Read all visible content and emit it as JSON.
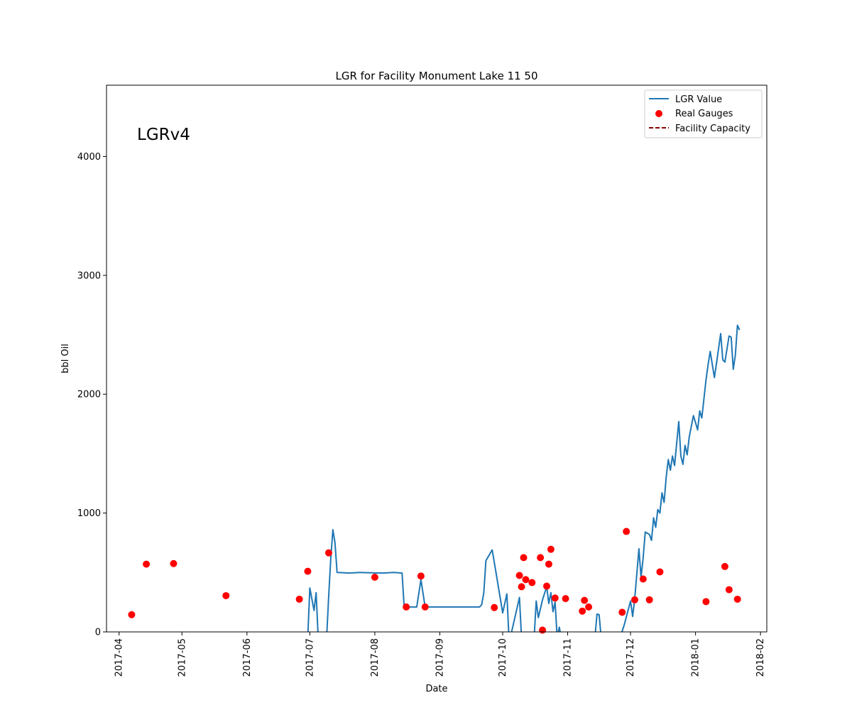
{
  "chart_data": {
    "type": "line",
    "title": "LGR for Facility Monument Lake 11 50",
    "xlabel": "Date",
    "ylabel": "bbl Oil",
    "annotation": "LGRv4",
    "xlim": [
      "2017-03-26",
      "2018-02-04"
    ],
    "ylim": [
      0,
      4600
    ],
    "x_ticks": [
      "2017-04",
      "2017-05",
      "2017-06",
      "2017-07",
      "2017-08",
      "2017-09",
      "2017-10",
      "2017-11",
      "2017-12",
      "2018-01",
      "2018-02"
    ],
    "x_tick_dates": [
      "2017-04-01",
      "2017-05-01",
      "2017-06-01",
      "2017-07-01",
      "2017-08-01",
      "2017-09-01",
      "2017-10-01",
      "2017-11-01",
      "2017-12-01",
      "2018-01-01",
      "2018-02-01"
    ],
    "y_ticks": [
      0,
      1000,
      2000,
      3000,
      4000
    ],
    "grid": false,
    "legend": {
      "position": "top-right",
      "entries": [
        "LGR Value",
        "Real Gauges",
        "Facility Capacity"
      ]
    },
    "colors": {
      "lgr_value": "#1f77b4",
      "real_gauges": "#ff0000",
      "facility_capacity": "#8b0000"
    },
    "series": [
      {
        "name": "LGR Value",
        "kind": "line",
        "points": [
          [
            "2017-06-30",
            -50
          ],
          [
            "2017-07-01",
            370
          ],
          [
            "2017-07-03",
            180
          ],
          [
            "2017-07-04",
            330
          ],
          [
            "2017-07-05",
            -50
          ],
          [
            "2017-07-09",
            -50
          ],
          [
            "2017-07-10",
            300
          ],
          [
            "2017-07-11",
            620
          ],
          [
            "2017-07-12",
            860
          ],
          [
            "2017-07-13",
            750
          ],
          [
            "2017-07-14",
            500
          ],
          [
            "2017-07-20",
            495
          ],
          [
            "2017-07-25",
            500
          ],
          [
            "2017-08-05",
            495
          ],
          [
            "2017-08-10",
            500
          ],
          [
            "2017-08-14",
            495
          ],
          [
            "2017-08-15",
            210
          ],
          [
            "2017-08-21",
            210
          ],
          [
            "2017-08-23",
            440
          ],
          [
            "2017-08-25",
            210
          ],
          [
            "2017-09-05",
            210
          ],
          [
            "2017-09-15",
            210
          ],
          [
            "2017-09-20",
            210
          ],
          [
            "2017-09-21",
            230
          ],
          [
            "2017-09-22",
            330
          ],
          [
            "2017-09-23",
            600
          ],
          [
            "2017-09-26",
            690
          ],
          [
            "2017-09-28",
            480
          ],
          [
            "2017-10-01",
            160
          ],
          [
            "2017-10-03",
            320
          ],
          [
            "2017-10-04",
            -50
          ],
          [
            "2017-10-05",
            -20
          ],
          [
            "2017-10-09",
            290
          ],
          [
            "2017-10-10",
            -50
          ],
          [
            "2017-10-16",
            -50
          ],
          [
            "2017-10-17",
            260
          ],
          [
            "2017-10-18",
            120
          ],
          [
            "2017-10-20",
            270
          ],
          [
            "2017-10-22",
            380
          ],
          [
            "2017-10-23",
            240
          ],
          [
            "2017-10-24",
            330
          ],
          [
            "2017-10-25",
            170
          ],
          [
            "2017-10-26",
            250
          ],
          [
            "2017-10-27",
            -50
          ],
          [
            "2017-10-28",
            40
          ],
          [
            "2017-10-29",
            -50
          ],
          [
            "2017-11-14",
            -50
          ],
          [
            "2017-11-15",
            150
          ],
          [
            "2017-11-16",
            145
          ],
          [
            "2017-11-17",
            -50
          ],
          [
            "2017-11-26",
            -50
          ],
          [
            "2017-11-28",
            60
          ],
          [
            "2017-12-01",
            260
          ],
          [
            "2017-12-02",
            130
          ],
          [
            "2017-12-03",
            280
          ],
          [
            "2017-12-05",
            700
          ],
          [
            "2017-12-06",
            460
          ],
          [
            "2017-12-07",
            620
          ],
          [
            "2017-12-08",
            840
          ],
          [
            "2017-12-10",
            820
          ],
          [
            "2017-12-11",
            770
          ],
          [
            "2017-12-12",
            960
          ],
          [
            "2017-12-13",
            880
          ],
          [
            "2017-12-14",
            1030
          ],
          [
            "2017-12-15",
            1000
          ],
          [
            "2017-12-16",
            1170
          ],
          [
            "2017-12-17",
            1090
          ],
          [
            "2017-12-18",
            1300
          ],
          [
            "2017-12-19",
            1450
          ],
          [
            "2017-12-20",
            1360
          ],
          [
            "2017-12-21",
            1480
          ],
          [
            "2017-12-22",
            1400
          ],
          [
            "2017-12-24",
            1770
          ],
          [
            "2017-12-25",
            1480
          ],
          [
            "2017-12-26",
            1410
          ],
          [
            "2017-12-27",
            1570
          ],
          [
            "2017-12-28",
            1490
          ],
          [
            "2017-12-29",
            1640
          ],
          [
            "2017-12-31",
            1820
          ],
          [
            "2018-01-01",
            1760
          ],
          [
            "2018-01-02",
            1700
          ],
          [
            "2018-01-03",
            1860
          ],
          [
            "2018-01-04",
            1800
          ],
          [
            "2018-01-05",
            1960
          ],
          [
            "2018-01-06",
            2120
          ],
          [
            "2018-01-07",
            2250
          ],
          [
            "2018-01-08",
            2360
          ],
          [
            "2018-01-09",
            2250
          ],
          [
            "2018-01-10",
            2140
          ],
          [
            "2018-01-11",
            2260
          ],
          [
            "2018-01-13",
            2510
          ],
          [
            "2018-01-14",
            2290
          ],
          [
            "2018-01-15",
            2270
          ],
          [
            "2018-01-16",
            2380
          ],
          [
            "2018-01-17",
            2490
          ],
          [
            "2018-01-18",
            2480
          ],
          [
            "2018-01-19",
            2210
          ],
          [
            "2018-01-20",
            2330
          ],
          [
            "2018-01-21",
            2580
          ],
          [
            "2018-01-22",
            2540
          ]
        ]
      },
      {
        "name": "Real Gauges",
        "kind": "scatter",
        "points": [
          [
            "2017-04-07",
            145
          ],
          [
            "2017-04-14",
            570
          ],
          [
            "2017-04-27",
            575
          ],
          [
            "2017-05-22",
            305
          ],
          [
            "2017-06-26",
            275
          ],
          [
            "2017-06-30",
            510
          ],
          [
            "2017-07-10",
            665
          ],
          [
            "2017-08-01",
            460
          ],
          [
            "2017-08-16",
            210
          ],
          [
            "2017-08-23",
            470
          ],
          [
            "2017-08-25",
            210
          ],
          [
            "2017-09-27",
            205
          ],
          [
            "2017-10-09",
            475
          ],
          [
            "2017-10-10",
            380
          ],
          [
            "2017-10-11",
            625
          ],
          [
            "2017-10-12",
            440
          ],
          [
            "2017-10-15",
            415
          ],
          [
            "2017-10-19",
            625
          ],
          [
            "2017-10-20",
            15
          ],
          [
            "2017-10-22",
            385
          ],
          [
            "2017-10-23",
            570
          ],
          [
            "2017-10-24",
            695
          ],
          [
            "2017-10-26",
            285
          ],
          [
            "2017-10-31",
            280
          ],
          [
            "2017-11-08",
            175
          ],
          [
            "2017-11-09",
            265
          ],
          [
            "2017-11-11",
            210
          ],
          [
            "2017-11-27",
            165
          ],
          [
            "2017-11-29",
            845
          ],
          [
            "2017-12-03",
            270
          ],
          [
            "2017-12-07",
            445
          ],
          [
            "2017-12-10",
            270
          ],
          [
            "2017-12-15",
            505
          ],
          [
            "2018-01-06",
            255
          ],
          [
            "2018-01-15",
            550
          ],
          [
            "2018-01-17",
            355
          ],
          [
            "2018-01-21",
            275
          ]
        ]
      },
      {
        "name": "Facility Capacity",
        "kind": "dashed-line",
        "points": []
      }
    ]
  }
}
